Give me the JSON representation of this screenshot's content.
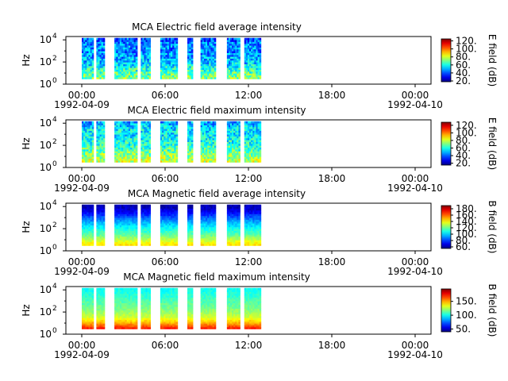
{
  "time_range": [
    "1992-04-09 00:00",
    "1992-04-10 00:00"
  ],
  "x_ticks": [
    {
      "time": "00:00",
      "date": "1992-04-09"
    },
    {
      "time": "06:00",
      "date": ""
    },
    {
      "time": "12:00",
      "date": ""
    },
    {
      "time": "18:00",
      "date": ""
    },
    {
      "time": "00:00",
      "date": "1992-04-10"
    }
  ],
  "chart_data": [
    {
      "type": "heatmap",
      "title": "MCA  Electric field average intensity",
      "ylabel": "Hz",
      "yscale": "log",
      "ylim": [
        1,
        20000
      ],
      "y_ticks": [
        "10^0",
        "10^2",
        "10^4"
      ],
      "colorbar_label": "E field (dB)",
      "clim": [
        18,
        125
      ],
      "colorbar_ticks": [
        "20.",
        "40.",
        "60.",
        "80.",
        "100.",
        "120."
      ],
      "data_intervals_hours": [
        [
          0.0,
          0.85
        ],
        [
          1.05,
          1.65
        ],
        [
          2.35,
          4.0
        ],
        [
          4.25,
          4.95
        ],
        [
          5.65,
          6.9
        ],
        [
          7.6,
          8.0
        ],
        [
          8.55,
          9.65
        ],
        [
          10.45,
          11.4
        ],
        [
          11.7,
          12.9
        ]
      ],
      "intensity_profile_db": [
        [
          3,
          72
        ],
        [
          10,
          68
        ],
        [
          30,
          60
        ],
        [
          100,
          52
        ],
        [
          300,
          48
        ],
        [
          1000,
          45
        ],
        [
          3000,
          48
        ],
        [
          10000,
          40
        ]
      ]
    },
    {
      "type": "heatmap",
      "title": "MCA  Electric field maximum intensity",
      "ylabel": "Hz",
      "yscale": "log",
      "ylim": [
        1,
        20000
      ],
      "y_ticks": [
        "10^0",
        "10^2",
        "10^4"
      ],
      "colorbar_label": "E field (dB)",
      "clim": [
        15,
        128
      ],
      "colorbar_ticks": [
        "20.",
        "40.",
        "60.",
        "80.",
        "100.",
        "120."
      ],
      "data_intervals_hours": [
        [
          0.0,
          0.85
        ],
        [
          1.05,
          1.65
        ],
        [
          2.35,
          4.0
        ],
        [
          4.25,
          4.95
        ],
        [
          5.65,
          6.9
        ],
        [
          7.6,
          8.0
        ],
        [
          8.55,
          9.65
        ],
        [
          10.45,
          11.4
        ],
        [
          11.7,
          12.9
        ]
      ],
      "intensity_profile_db": [
        [
          3,
          80
        ],
        [
          10,
          75
        ],
        [
          30,
          68
        ],
        [
          100,
          62
        ],
        [
          300,
          58
        ],
        [
          1000,
          55
        ],
        [
          3000,
          56
        ],
        [
          10000,
          48
        ]
      ]
    },
    {
      "type": "heatmap",
      "title": "MCA  Magnetic field average intensity",
      "ylabel": "Hz",
      "yscale": "log",
      "ylim": [
        1,
        20000
      ],
      "y_ticks": [
        "10^0",
        "10^2",
        "10^4"
      ],
      "colorbar_label": "B field (dB)",
      "clim": [
        55,
        190
      ],
      "colorbar_ticks": [
        "60.",
        "80.",
        "100.",
        "120.",
        "140.",
        "160.",
        "180."
      ],
      "data_intervals_hours": [
        [
          0.0,
          0.85
        ],
        [
          1.05,
          1.65
        ],
        [
          2.35,
          4.0
        ],
        [
          4.25,
          4.95
        ],
        [
          5.65,
          6.9
        ],
        [
          7.6,
          8.0
        ],
        [
          8.55,
          9.65
        ],
        [
          10.45,
          11.4
        ],
        [
          11.7,
          12.9
        ]
      ],
      "intensity_profile_db": [
        [
          3,
          145
        ],
        [
          10,
          132
        ],
        [
          30,
          118
        ],
        [
          100,
          108
        ],
        [
          300,
          98
        ],
        [
          1000,
          85
        ],
        [
          3000,
          72
        ],
        [
          10000,
          62
        ]
      ]
    },
    {
      "type": "heatmap",
      "title": "MCA  Magnetic field maximum intensity",
      "ylabel": "Hz",
      "yscale": "log",
      "ylim": [
        1,
        20000
      ],
      "y_ticks": [
        "10^0",
        "10^2",
        "10^4"
      ],
      "colorbar_label": "B field (dB)",
      "clim": [
        40,
        195
      ],
      "colorbar_ticks": [
        "50.",
        "100.",
        "150."
      ],
      "data_intervals_hours": [
        [
          0.0,
          0.85
        ],
        [
          1.05,
          1.65
        ],
        [
          2.35,
          4.0
        ],
        [
          4.25,
          4.95
        ],
        [
          5.65,
          6.9
        ],
        [
          7.6,
          8.0
        ],
        [
          8.55,
          9.65
        ],
        [
          10.45,
          11.4
        ],
        [
          11.7,
          12.9
        ]
      ],
      "intensity_profile_db": [
        [
          3,
          175
        ],
        [
          10,
          150
        ],
        [
          30,
          132
        ],
        [
          100,
          122
        ],
        [
          300,
          115
        ],
        [
          1000,
          110
        ],
        [
          3000,
          105
        ],
        [
          10000,
          100
        ]
      ]
    }
  ]
}
